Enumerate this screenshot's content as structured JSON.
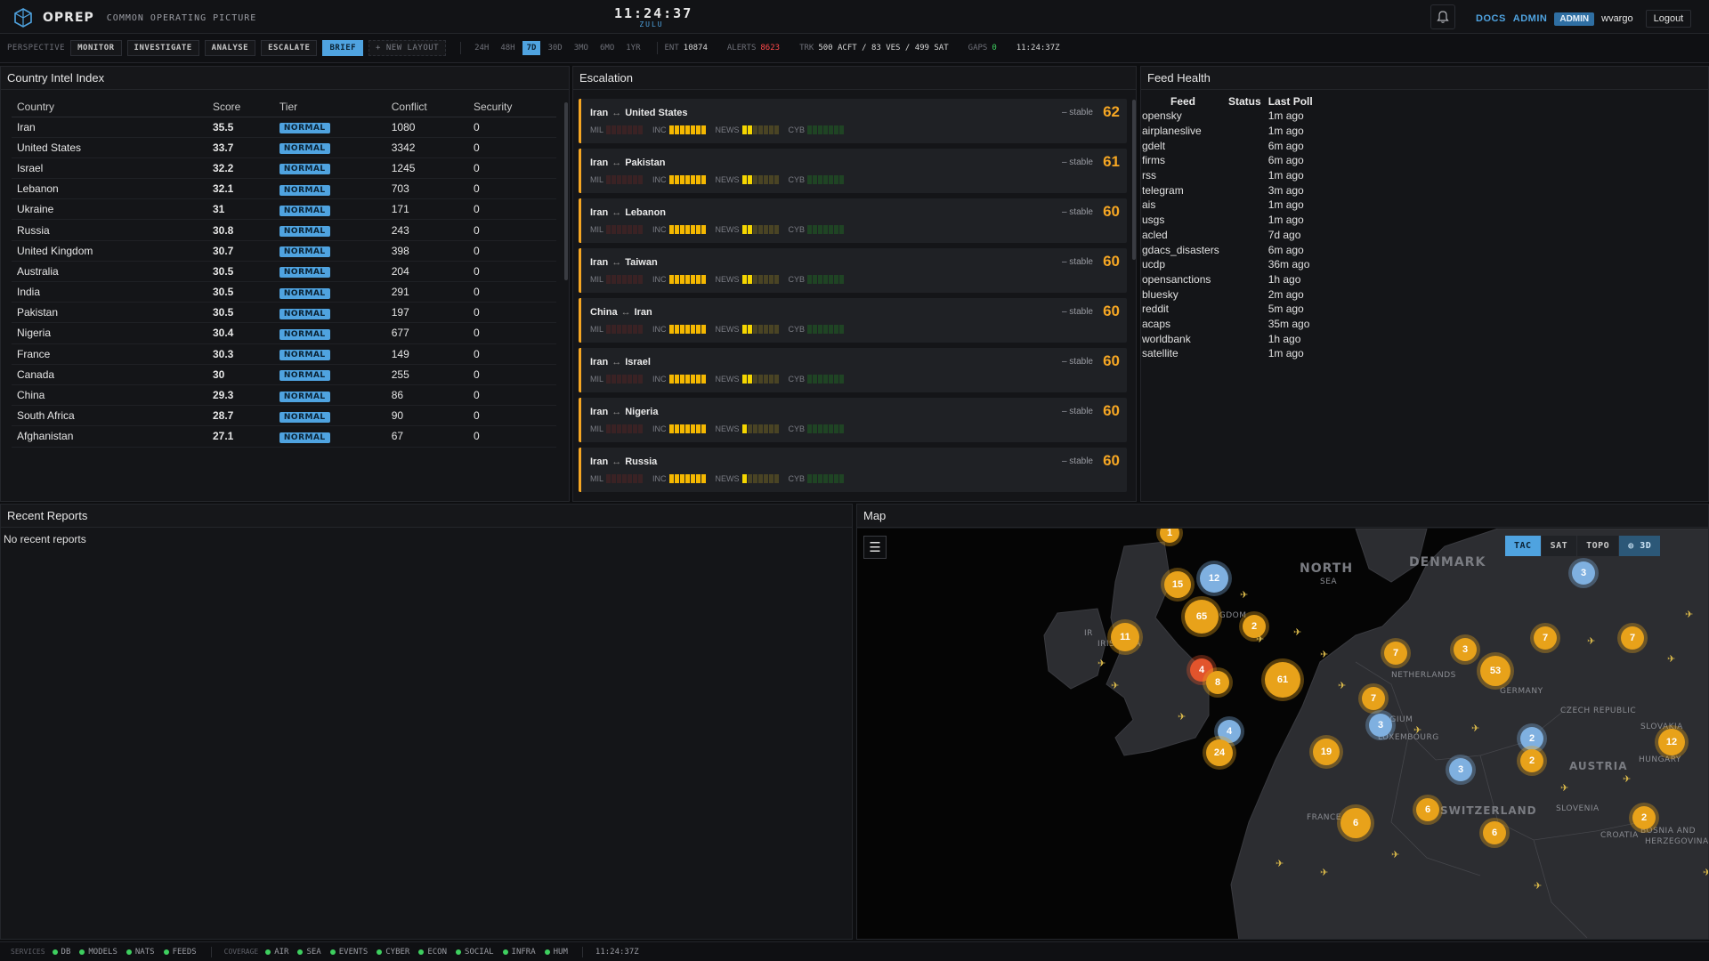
{
  "header": {
    "app_title": "OPREP",
    "app_subtitle": "COMMON OPERATING PICTURE",
    "clock_time": "11:24:37",
    "clock_zone": "ZULU",
    "links": {
      "docs": "DOCS",
      "admin": "ADMIN"
    },
    "role_badge": "ADMIN",
    "username": "wvargo",
    "logout_label": "Logout"
  },
  "toolbar": {
    "perspective_label": "PERSPECTIVE",
    "perspectives": [
      "MONITOR",
      "INVESTIGATE",
      "ANALYSE",
      "ESCALATE",
      "BRIEF"
    ],
    "active_perspective": "BRIEF",
    "new_layout_label": "+ NEW LAYOUT",
    "time_ranges": [
      "24H",
      "48H",
      "7D",
      "30D",
      "3MO",
      "6MO",
      "1YR"
    ],
    "active_time_range": "7D",
    "stats": {
      "ent_label": "ENT",
      "ent_value": "10874",
      "alerts_label": "ALERTS",
      "alerts_value": "8623",
      "trk_label": "TRK",
      "trk_value": "500 ACFT / 83 VES / 499 SAT",
      "gaps_label": "GAPS",
      "gaps_value": "0",
      "time": "11:24:37Z"
    }
  },
  "intel": {
    "title": "Country Intel Index",
    "columns": [
      "Country",
      "Score",
      "Tier",
      "Conflict",
      "Security"
    ],
    "rows": [
      {
        "country": "Iran",
        "score": "35.5",
        "tier": "NORMAL",
        "conflict": "1080",
        "security": "0"
      },
      {
        "country": "United States",
        "score": "33.7",
        "tier": "NORMAL",
        "conflict": "3342",
        "security": "0"
      },
      {
        "country": "Israel",
        "score": "32.2",
        "tier": "NORMAL",
        "conflict": "1245",
        "security": "0"
      },
      {
        "country": "Lebanon",
        "score": "32.1",
        "tier": "NORMAL",
        "conflict": "703",
        "security": "0"
      },
      {
        "country": "Ukraine",
        "score": "31",
        "tier": "NORMAL",
        "conflict": "171",
        "security": "0"
      },
      {
        "country": "Russia",
        "score": "30.8",
        "tier": "NORMAL",
        "conflict": "243",
        "security": "0"
      },
      {
        "country": "United Kingdom",
        "score": "30.7",
        "tier": "NORMAL",
        "conflict": "398",
        "security": "0"
      },
      {
        "country": "Australia",
        "score": "30.5",
        "tier": "NORMAL",
        "conflict": "204",
        "security": "0"
      },
      {
        "country": "India",
        "score": "30.5",
        "tier": "NORMAL",
        "conflict": "291",
        "security": "0"
      },
      {
        "country": "Pakistan",
        "score": "30.5",
        "tier": "NORMAL",
        "conflict": "197",
        "security": "0"
      },
      {
        "country": "Nigeria",
        "score": "30.4",
        "tier": "NORMAL",
        "conflict": "677",
        "security": "0"
      },
      {
        "country": "France",
        "score": "30.3",
        "tier": "NORMAL",
        "conflict": "149",
        "security": "0"
      },
      {
        "country": "Canada",
        "score": "30",
        "tier": "NORMAL",
        "conflict": "255",
        "security": "0"
      },
      {
        "country": "China",
        "score": "29.3",
        "tier": "NORMAL",
        "conflict": "86",
        "security": "0"
      },
      {
        "country": "South Africa",
        "score": "28.7",
        "tier": "NORMAL",
        "conflict": "90",
        "security": "0"
      },
      {
        "country": "Afghanistan",
        "score": "27.1",
        "tier": "NORMAL",
        "conflict": "67",
        "security": "0"
      }
    ]
  },
  "escalation": {
    "title": "Escalation",
    "bar_labels": [
      "MIL",
      "INC",
      "NEWS",
      "CYB"
    ],
    "pairs": [
      {
        "a": "Iran",
        "b": "United States",
        "trend": "– stable",
        "score": "62",
        "news_level": 2
      },
      {
        "a": "Iran",
        "b": "Pakistan",
        "trend": "– stable",
        "score": "61",
        "news_level": 2
      },
      {
        "a": "Iran",
        "b": "Lebanon",
        "trend": "– stable",
        "score": "60",
        "news_level": 2
      },
      {
        "a": "Iran",
        "b": "Taiwan",
        "trend": "– stable",
        "score": "60",
        "news_level": 2
      },
      {
        "a": "China",
        "b": "Iran",
        "trend": "– stable",
        "score": "60",
        "news_level": 2
      },
      {
        "a": "Iran",
        "b": "Israel",
        "trend": "– stable",
        "score": "60",
        "news_level": 2
      },
      {
        "a": "Iran",
        "b": "Nigeria",
        "trend": "– stable",
        "score": "60",
        "news_level": 1
      },
      {
        "a": "Iran",
        "b": "Russia",
        "trend": "– stable",
        "score": "60",
        "news_level": 1
      }
    ]
  },
  "feeds": {
    "title": "Feed Health",
    "columns": [
      "Feed",
      "Status",
      "Last Poll"
    ],
    "rows": [
      {
        "feed": "opensky",
        "status": "",
        "last": "1m ago"
      },
      {
        "feed": "airplaneslive",
        "status": "",
        "last": "1m ago"
      },
      {
        "feed": "gdelt",
        "status": "",
        "last": "6m ago"
      },
      {
        "feed": "firms",
        "status": "",
        "last": "6m ago"
      },
      {
        "feed": "rss",
        "status": "",
        "last": "1m ago"
      },
      {
        "feed": "telegram",
        "status": "",
        "last": "3m ago"
      },
      {
        "feed": "ais",
        "status": "",
        "last": "1m ago"
      },
      {
        "feed": "usgs",
        "status": "",
        "last": "1m ago"
      },
      {
        "feed": "acled",
        "status": "",
        "last": "7d ago"
      },
      {
        "feed": "gdacs_disasters",
        "status": "",
        "last": "6m ago"
      },
      {
        "feed": "ucdp",
        "status": "",
        "last": "36m ago"
      },
      {
        "feed": "opensanctions",
        "status": "",
        "last": "1h ago"
      },
      {
        "feed": "bluesky",
        "status": "",
        "last": "2m ago"
      },
      {
        "feed": "reddit",
        "status": "",
        "last": "5m ago"
      },
      {
        "feed": "acaps",
        "status": "",
        "last": "35m ago"
      },
      {
        "feed": "worldbank",
        "status": "",
        "last": "1h ago"
      },
      {
        "feed": "satellite",
        "status": "",
        "last": "1m ago"
      }
    ]
  },
  "reports": {
    "title": "Recent Reports",
    "empty_text": "No recent reports"
  },
  "map": {
    "title": "Map",
    "layers": [
      "TAC",
      "SAT",
      "TOPO",
      "3D"
    ],
    "active_layer": "TAC",
    "labels": [
      "NORTH",
      "SEA",
      "DENMARK",
      "ED KINGDOM",
      "IRISH SEA",
      "NETHERLANDS",
      "BELGIUM",
      "LUXEMBOURG",
      "GERMANY",
      "CZECH REPUBLIC",
      "SLOVAKIA",
      "AUSTRIA",
      "HUNGARY",
      "SWITZERLAND",
      "SLOVENIA",
      "CROATIA",
      "BOSNIA AND HERZEGOVINA",
      "FRANCE",
      "IR"
    ],
    "clusters": [
      "15",
      "12",
      "65",
      "2",
      "11",
      "4",
      "8",
      "61",
      "7",
      "3",
      "53",
      "7",
      "7",
      "7",
      "3",
      "4",
      "24",
      "19",
      "2",
      "3",
      "2",
      "12",
      "6",
      "6",
      "2",
      "6",
      "3",
      "1"
    ]
  },
  "footer": {
    "services_label": "SERVICES",
    "services": [
      "DB",
      "MODELS",
      "NATS",
      "FEEDS"
    ],
    "coverage_label": "COVERAGE",
    "coverage": [
      "AIR",
      "SEA",
      "EVENTS",
      "CYBER",
      "ECON",
      "SOCIAL",
      "INFRA",
      "HUM"
    ],
    "time": "11:24:37Z"
  },
  "colors": {
    "accent": "#4fa3e0",
    "escalation": "#f5a623",
    "alert": "#ff4a4a",
    "ok": "#3ecf5f"
  }
}
